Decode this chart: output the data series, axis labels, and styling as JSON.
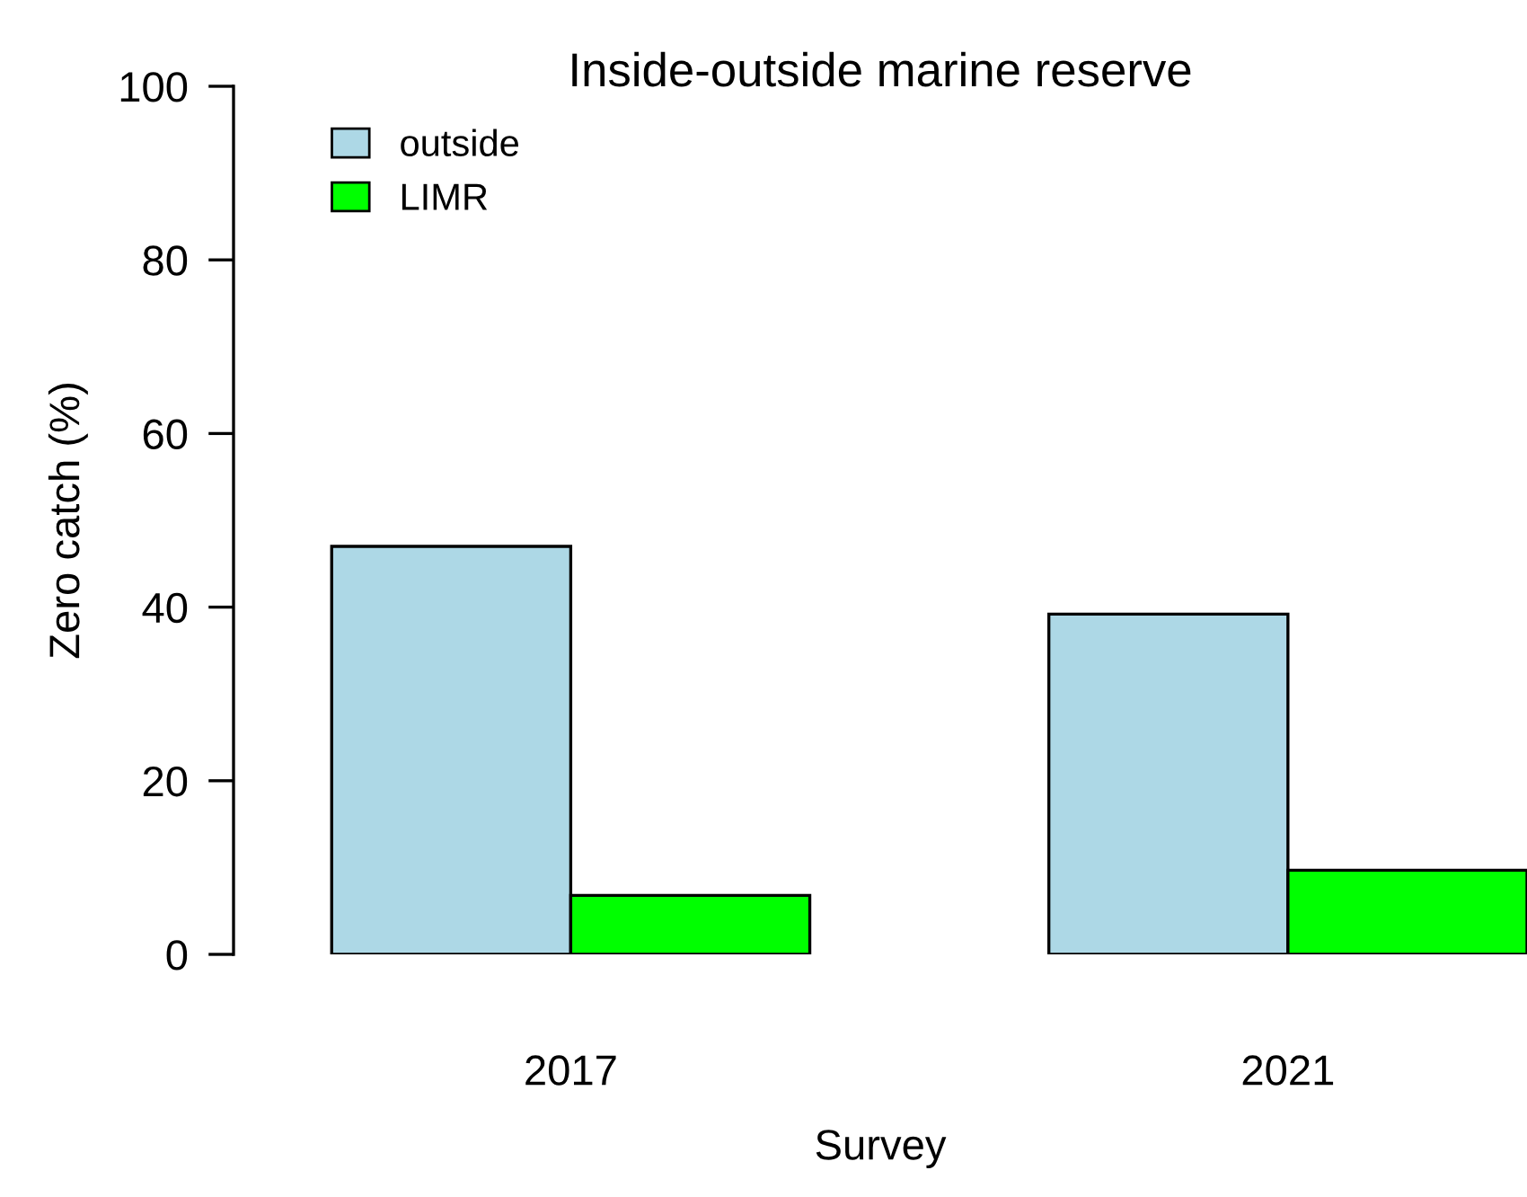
{
  "chart_data": {
    "type": "bar",
    "title": "Inside-outside marine reserve",
    "xlabel": "Survey",
    "ylabel": "Zero catch (%)",
    "categories": [
      "2017",
      "2021"
    ],
    "series": [
      {
        "name": "outside",
        "color": "#add8e6",
        "values": [
          47.0,
          39.2
        ]
      },
      {
        "name": "LIMR",
        "color": "#00ff00",
        "values": [
          6.8,
          9.7
        ]
      }
    ],
    "ylim": [
      0,
      100
    ],
    "yticks": [
      0,
      20,
      40,
      60,
      80,
      100
    ],
    "grid": false,
    "legend": "top left"
  }
}
